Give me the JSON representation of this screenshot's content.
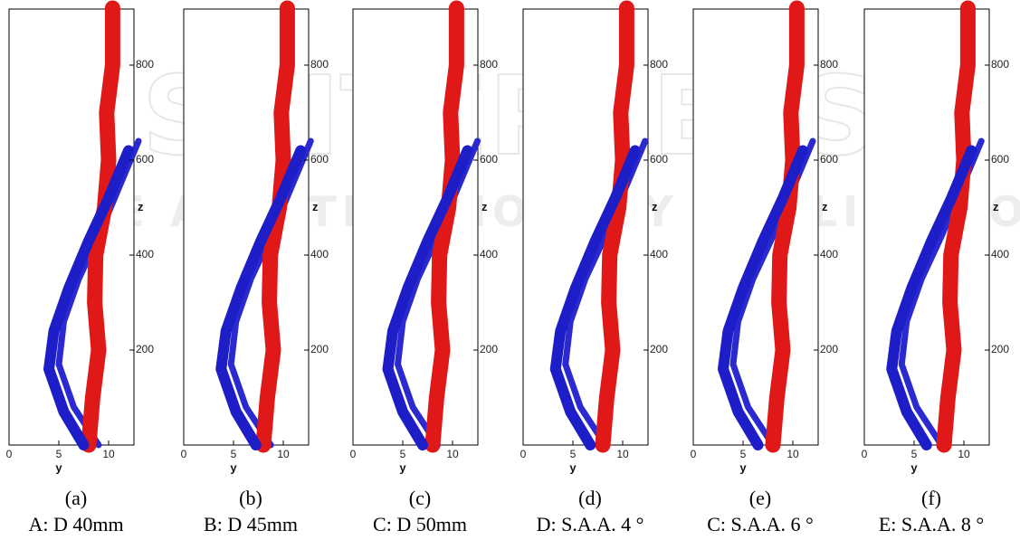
{
  "axes": {
    "xlabel": "y",
    "zlabel": "z",
    "xticks": [
      0,
      5,
      10
    ],
    "zticks": [
      200,
      400,
      600,
      800
    ]
  },
  "panels": [
    {
      "label": "(a)",
      "caption": "A: D 40mm"
    },
    {
      "label": "(b)",
      "caption": "B: D 45mm"
    },
    {
      "label": "(c)",
      "caption": "C: D 50mm"
    },
    {
      "label": "(d)",
      "caption": "D: S.A.A. 4 °"
    },
    {
      "label": "(e)",
      "caption": "C: S.A.A. 6 °"
    },
    {
      "label": "(f)",
      "caption": "E: S.A.A. 8 °"
    }
  ],
  "watermark": {
    "main": "SCITEPRESS",
    "sub": "SCIENCE AND TECHNOLOGY PUBLICATIONS"
  }
}
